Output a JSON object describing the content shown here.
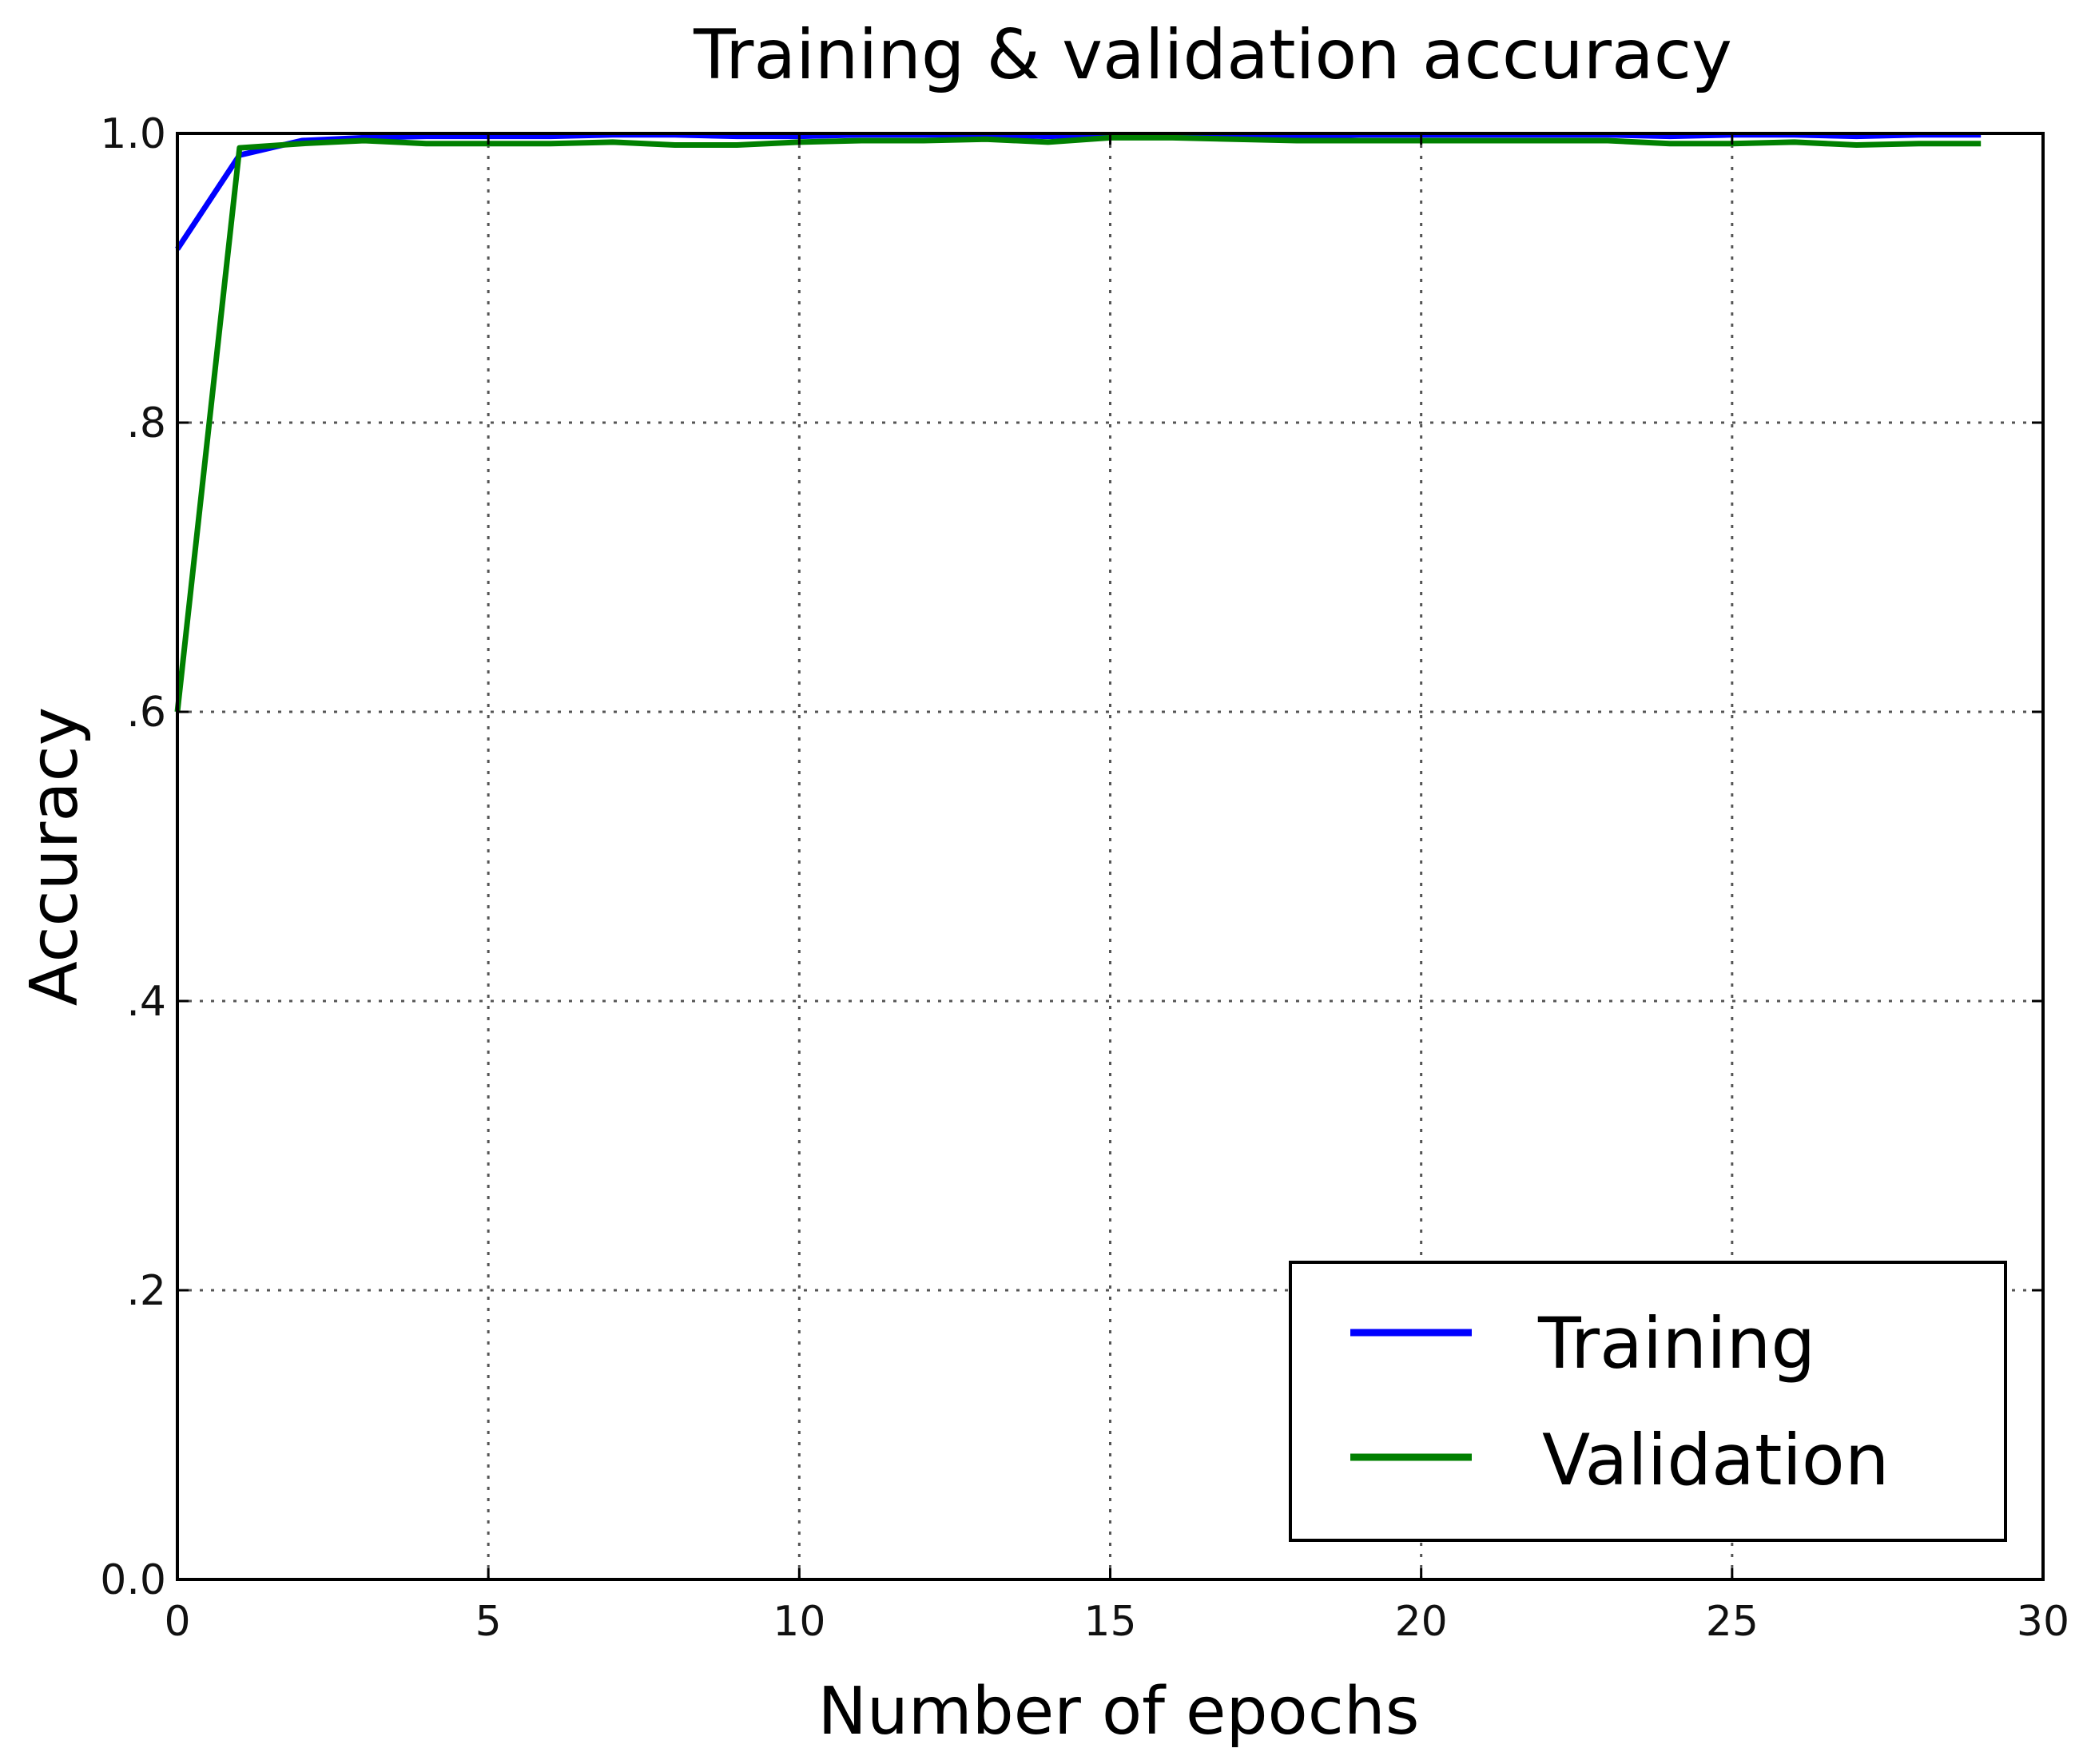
{
  "chart_data": {
    "type": "line",
    "title": "Training & validation accuracy",
    "xlabel": "Number of epochs",
    "ylabel": "Accuracy",
    "xlim": [
      0,
      30
    ],
    "ylim": [
      0,
      1.0
    ],
    "xticks": [
      0,
      5,
      10,
      15,
      20,
      25,
      30
    ],
    "xtick_labels": [
      "0",
      "5",
      "10",
      "15",
      "20",
      "25",
      "30"
    ],
    "yticks": [
      0,
      0.2,
      0.4,
      0.6,
      0.8,
      1.0
    ],
    "ytick_labels": [
      "0.0",
      ".2",
      ".4",
      ".6",
      ".8",
      "1.0"
    ],
    "grid": true,
    "legend_position": "lower-right",
    "x": [
      0,
      1,
      2,
      3,
      4,
      5,
      6,
      7,
      8,
      9,
      10,
      11,
      12,
      13,
      14,
      15,
      16,
      17,
      18,
      19,
      20,
      21,
      22,
      23,
      24,
      25,
      26,
      27,
      28,
      29
    ],
    "series": [
      {
        "name": "Training",
        "color": "#0000ff",
        "values": [
          0.92,
          0.985,
          0.995,
          0.997,
          0.998,
          0.998,
          0.998,
          0.999,
          0.999,
          0.998,
          0.998,
          0.999,
          0.999,
          0.999,
          0.998,
          0.999,
          0.999,
          0.999,
          0.998,
          0.999,
          0.999,
          0.999,
          0.999,
          0.999,
          0.998,
          0.999,
          0.999,
          0.998,
          0.999,
          0.999
        ]
      },
      {
        "name": "Validation",
        "color": "#008000",
        "values": [
          0.6,
          0.99,
          0.993,
          0.995,
          0.993,
          0.993,
          0.993,
          0.994,
          0.992,
          0.992,
          0.994,
          0.995,
          0.995,
          0.996,
          0.994,
          0.997,
          0.997,
          0.996,
          0.995,
          0.995,
          0.995,
          0.995,
          0.995,
          0.995,
          0.993,
          0.993,
          0.994,
          0.992,
          0.993,
          0.993
        ]
      }
    ]
  }
}
